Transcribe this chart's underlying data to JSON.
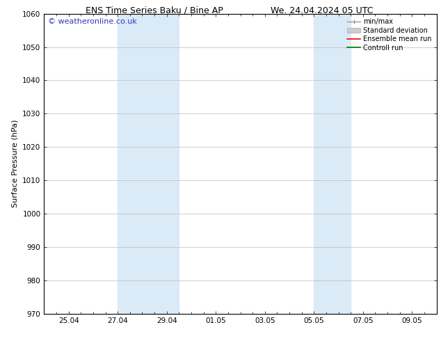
{
  "title_left": "ENS Time Series Baku / Bine AP",
  "title_right": "We. 24.04.2024 05 UTC",
  "ylabel": "Surface Pressure (hPa)",
  "ylim": [
    970,
    1060
  ],
  "yticks": [
    970,
    980,
    990,
    1000,
    1010,
    1020,
    1030,
    1040,
    1050,
    1060
  ],
  "xtick_labels": [
    "25.04",
    "27.04",
    "29.04",
    "01.05",
    "03.05",
    "05.05",
    "07.05",
    "09.05"
  ],
  "xlim": [
    -1,
    15
  ],
  "shade_regions": [
    {
      "x_start": 2.0,
      "x_end": 4.5
    },
    {
      "x_start": 10.0,
      "x_end": 11.5
    }
  ],
  "shade_color": "#daeaf7",
  "bg_color": "#ffffff",
  "watermark_text": "© weatheronline.co.uk",
  "watermark_color": "#3333bb",
  "watermark_fontsize": 8,
  "title_fontsize": 9,
  "tick_fontsize": 7.5,
  "ylabel_fontsize": 8,
  "legend_fontsize": 7
}
